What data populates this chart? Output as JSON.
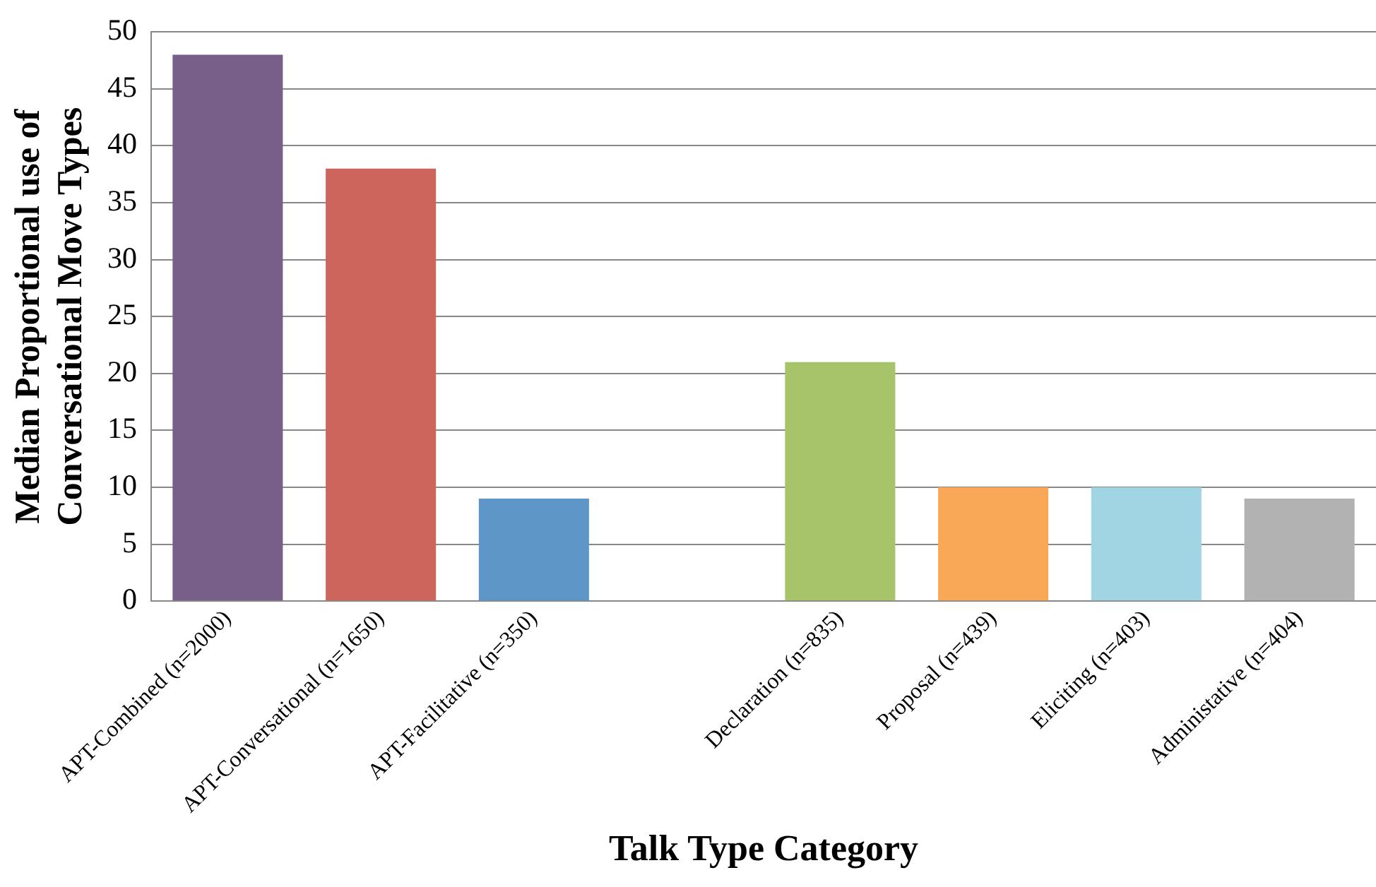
{
  "chart_data": {
    "type": "bar",
    "xlabel": "Talk Type Category",
    "ylabel": "Median Proportional use of Conversational Move Types",
    "categories": [
      "APT-Combined (n=2000)",
      "APT-Conversational (n=1650)",
      "APT-Facilitative (n=350)",
      null,
      "Declaration (n=835)",
      "Proposal (n=439)",
      "Eliciting (n=403)",
      "Administative (n=404)"
    ],
    "values": [
      48,
      38,
      9,
      null,
      21,
      10,
      10,
      9
    ],
    "colors": [
      "#775f8a",
      "#cd655c",
      "#5f96c8",
      null,
      "#a8c46a",
      "#f9a857",
      "#a1d5e3",
      "#b2b2b2"
    ],
    "ylim": [
      0,
      50
    ],
    "yticks": [
      0,
      5,
      10,
      15,
      20,
      25,
      30,
      35,
      40,
      45,
      50
    ],
    "grid": "y",
    "legend": false
  }
}
